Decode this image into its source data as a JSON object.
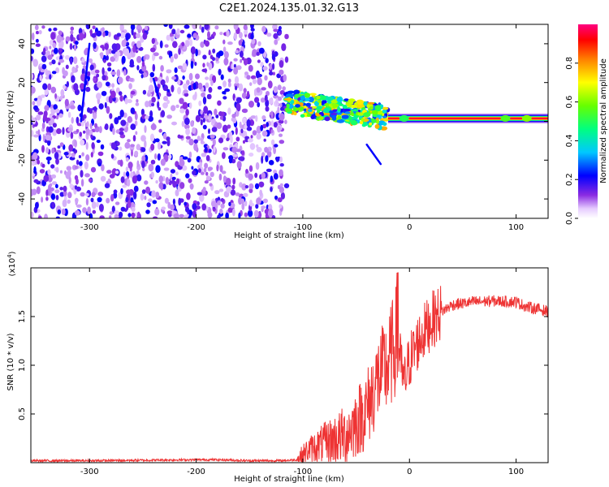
{
  "title": "C2E1.2024.135.01.32.G13",
  "chart_data": [
    {
      "type": "heatmap",
      "xlabel": "Height of straight line (km)",
      "ylabel": "Frequency (Hz)",
      "xlim": [
        -355,
        130
      ],
      "ylim": [
        -50,
        50
      ],
      "x_ticks": [
        -300,
        -200,
        -100,
        0,
        100
      ],
      "x_tick_labels": [
        "-300",
        "-200",
        "-100",
        "0",
        "100"
      ],
      "y_ticks": [
        -40,
        -20,
        0,
        20,
        40
      ],
      "y_tick_labels": [
        "-40",
        "-20",
        "0",
        "20",
        "40"
      ],
      "colorbar": {
        "label": "Normalized spectral amplitude",
        "range": [
          0,
          1
        ],
        "ticks": [
          0.0,
          0.2,
          0.4,
          0.6,
          0.8
        ],
        "tick_labels": [
          "0.0",
          "0.2",
          "0.4",
          "0.6",
          "0.8"
        ]
      },
      "regions": [
        {
          "x_range": [
            -355,
            -115
          ],
          "frequency_range": [
            -50,
            50
          ],
          "amplitude": 0.1
        },
        {
          "x_range": [
            -115,
            -20
          ],
          "frequency_center_start": 10,
          "frequency_center_end": 2,
          "amplitude": 0.6
        },
        {
          "x_range": [
            -20,
            130
          ],
          "frequency_center": 1.5,
          "amplitude": 0.95
        }
      ],
      "line_features": [
        {
          "x": [
            -308,
            -300
          ],
          "y": [
            0,
            40
          ]
        },
        {
          "x": [
            -240,
            -235
          ],
          "y": [
            22,
            12
          ]
        },
        {
          "x": [
            -40,
            -27
          ],
          "y": [
            -12,
            -22
          ]
        }
      ]
    },
    {
      "type": "line",
      "xlabel": "Height of straight line (km)",
      "ylabel": "SNR (10 * v/v)",
      "ymultiplier": "(x10",
      "ymultiplier_exp": "4",
      "ymultiplier_close": ")",
      "xlim": [
        -355,
        130
      ],
      "ylim": [
        0,
        2.0
      ],
      "x_ticks": [
        -300,
        -200,
        -100,
        0,
        100
      ],
      "x_tick_labels": [
        "-300",
        "-200",
        "-100",
        "0",
        "100"
      ],
      "y_ticks": [
        0.5,
        1.0,
        1.5
      ],
      "y_tick_labels": [
        "0.5",
        "1.0",
        "1.5"
      ],
      "series": [
        {
          "color": "#ee3333",
          "x": [
            -355,
            -300,
            -200,
            -180,
            -150,
            -120,
            -105,
            -95,
            -80,
            -60,
            -40,
            -30,
            -20,
            -12,
            -5,
            0,
            10,
            20,
            30,
            40,
            60,
            80,
            100,
            110,
            120,
            130
          ],
          "y": [
            0.02,
            0.02,
            0.03,
            0.03,
            0.02,
            0.02,
            0.03,
            0.13,
            0.2,
            0.28,
            0.55,
            0.85,
            1.0,
            1.28,
            0.8,
            1.05,
            1.28,
            1.45,
            1.55,
            1.62,
            1.65,
            1.66,
            1.65,
            1.6,
            1.58,
            1.55
          ]
        }
      ]
    }
  ]
}
